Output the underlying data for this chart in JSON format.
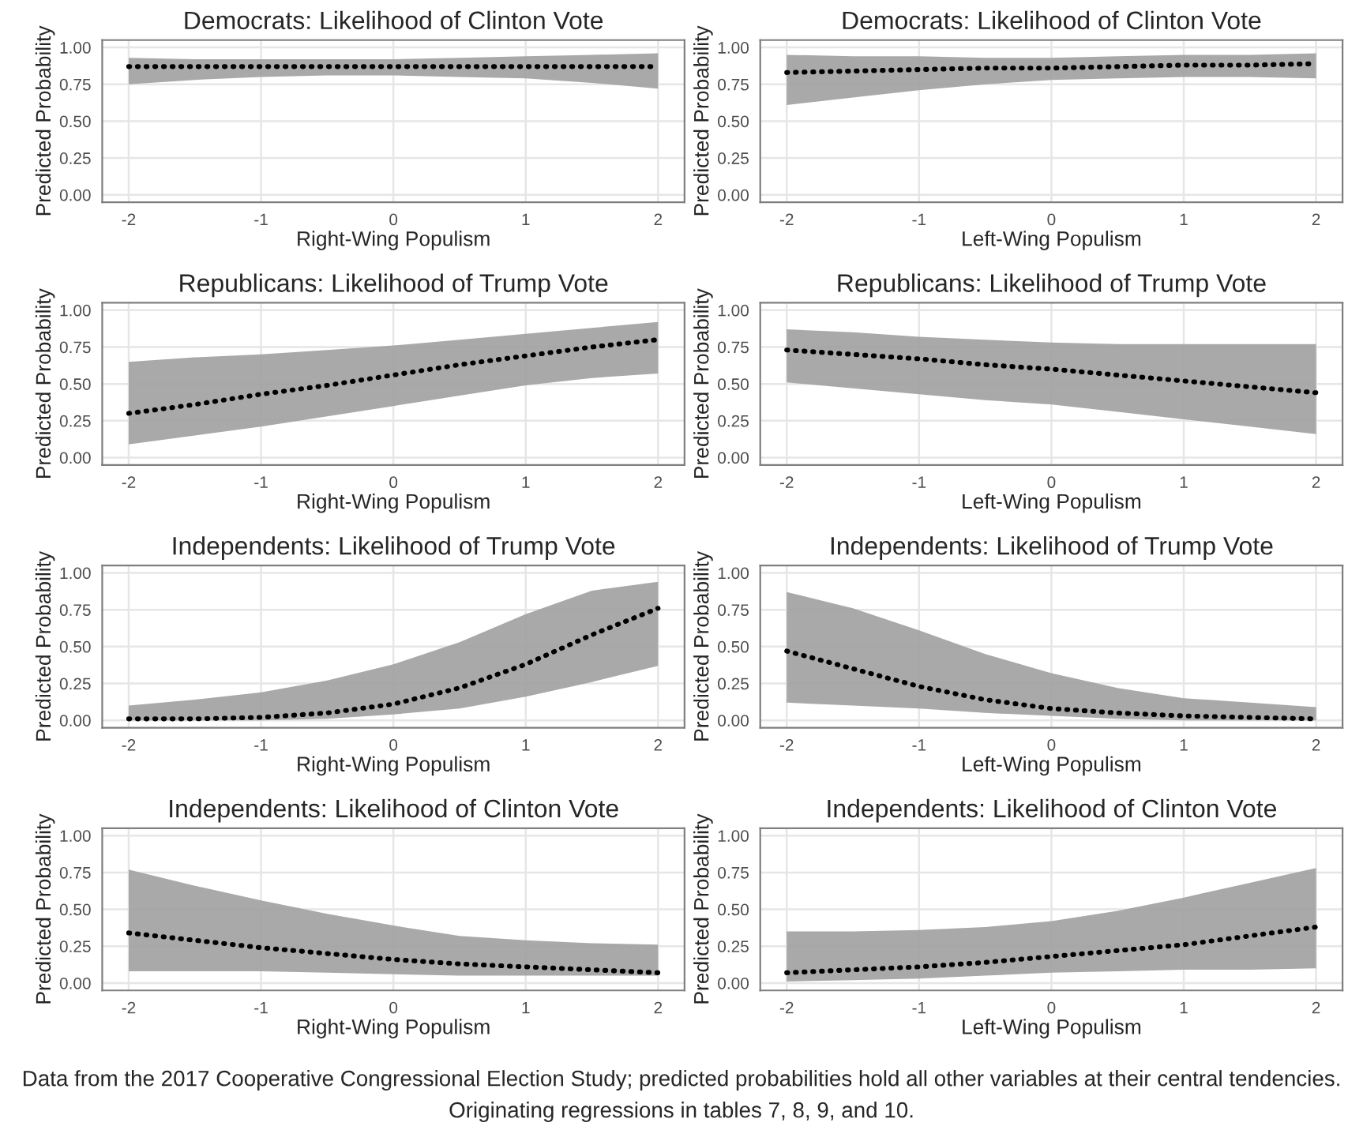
{
  "chart_data": [
    {
      "type": "line",
      "title": "Democrats: Likelihood of Clinton Vote",
      "xlabel": "Right-Wing Populism",
      "ylabel": "Predicted Probability",
      "x": [
        -2,
        -1.5,
        -1,
        -0.5,
        0,
        0.5,
        1,
        1.5,
        2
      ],
      "xlim": [
        -2.2,
        2.2
      ],
      "ylim": [
        -0.05,
        1.05
      ],
      "xticks": [
        -2,
        -1,
        0,
        1,
        2
      ],
      "yticks": [
        {
          "value": 0,
          "label": "0.00"
        },
        {
          "value": 0.25,
          "label": "0.25"
        },
        {
          "value": 0.5,
          "label": "0.50"
        },
        {
          "value": 0.75,
          "label": "0.75"
        },
        {
          "value": 1,
          "label": "1.00"
        }
      ],
      "grid": true,
      "line_style": "dotted",
      "series": [
        {
          "color": "#000000",
          "values": [
            0.87,
            0.87,
            0.87,
            0.87,
            0.87,
            0.87,
            0.87,
            0.87,
            0.87
          ],
          "lower": [
            0.75,
            0.78,
            0.8,
            0.81,
            0.81,
            0.8,
            0.79,
            0.76,
            0.72
          ],
          "upper": [
            0.93,
            0.92,
            0.92,
            0.92,
            0.92,
            0.93,
            0.94,
            0.95,
            0.96
          ]
        }
      ]
    },
    {
      "type": "line",
      "title": "Democrats: Likelihood of Clinton Vote",
      "xlabel": "Left-Wing Populism",
      "ylabel": "Predicted Probability",
      "x": [
        -2,
        -1.5,
        -1,
        -0.5,
        0,
        0.5,
        1,
        1.5,
        2
      ],
      "xlim": [
        -2.2,
        2.2
      ],
      "ylim": [
        -0.05,
        1.05
      ],
      "xticks": [
        -2,
        -1,
        0,
        1,
        2
      ],
      "yticks": [
        {
          "value": 0,
          "label": "0.00"
        },
        {
          "value": 0.25,
          "label": "0.25"
        },
        {
          "value": 0.5,
          "label": "0.50"
        },
        {
          "value": 0.75,
          "label": "0.75"
        },
        {
          "value": 1,
          "label": "1.00"
        }
      ],
      "grid": true,
      "line_style": "dotted",
      "series": [
        {
          "color": "#000000",
          "values": [
            0.83,
            0.84,
            0.85,
            0.86,
            0.86,
            0.87,
            0.88,
            0.88,
            0.89
          ],
          "lower": [
            0.61,
            0.66,
            0.71,
            0.75,
            0.78,
            0.79,
            0.8,
            0.8,
            0.79
          ],
          "upper": [
            0.95,
            0.94,
            0.94,
            0.93,
            0.93,
            0.94,
            0.95,
            0.95,
            0.96
          ]
        }
      ]
    },
    {
      "type": "line",
      "title": "Republicans: Likelihood of Trump Vote",
      "xlabel": "Right-Wing Populism",
      "ylabel": "Predicted Probability",
      "x": [
        -2,
        -1.5,
        -1,
        -0.5,
        0,
        0.5,
        1,
        1.5,
        2
      ],
      "xlim": [
        -2.2,
        2.2
      ],
      "ylim": [
        -0.05,
        1.05
      ],
      "xticks": [
        -2,
        -1,
        0,
        1,
        2
      ],
      "yticks": [
        {
          "value": 0,
          "label": "0.00"
        },
        {
          "value": 0.25,
          "label": "0.25"
        },
        {
          "value": 0.5,
          "label": "0.50"
        },
        {
          "value": 0.75,
          "label": "0.75"
        },
        {
          "value": 1,
          "label": "1.00"
        }
      ],
      "grid": true,
      "line_style": "dotted",
      "series": [
        {
          "color": "#000000",
          "values": [
            0.3,
            0.36,
            0.43,
            0.49,
            0.56,
            0.63,
            0.69,
            0.75,
            0.8
          ],
          "lower": [
            0.09,
            0.15,
            0.21,
            0.28,
            0.35,
            0.42,
            0.49,
            0.54,
            0.57
          ],
          "upper": [
            0.65,
            0.68,
            0.7,
            0.73,
            0.76,
            0.8,
            0.84,
            0.88,
            0.92
          ]
        }
      ]
    },
    {
      "type": "line",
      "title": "Republicans: Likelihood of Trump Vote",
      "xlabel": "Left-Wing Populism",
      "ylabel": "Predicted Probability",
      "x": [
        -2,
        -1.5,
        -1,
        -0.5,
        0,
        0.5,
        1,
        1.5,
        2
      ],
      "xlim": [
        -2.2,
        2.2
      ],
      "ylim": [
        -0.05,
        1.05
      ],
      "xticks": [
        -2,
        -1,
        0,
        1,
        2
      ],
      "yticks": [
        {
          "value": 0,
          "label": "0.00"
        },
        {
          "value": 0.25,
          "label": "0.25"
        },
        {
          "value": 0.5,
          "label": "0.50"
        },
        {
          "value": 0.75,
          "label": "0.75"
        },
        {
          "value": 1,
          "label": "1.00"
        }
      ],
      "grid": true,
      "line_style": "dotted",
      "series": [
        {
          "color": "#000000",
          "values": [
            0.73,
            0.7,
            0.67,
            0.63,
            0.6,
            0.56,
            0.52,
            0.48,
            0.44
          ],
          "lower": [
            0.51,
            0.47,
            0.43,
            0.39,
            0.36,
            0.31,
            0.26,
            0.21,
            0.16
          ],
          "upper": [
            0.87,
            0.85,
            0.82,
            0.8,
            0.78,
            0.77,
            0.77,
            0.77,
            0.77
          ]
        }
      ]
    },
    {
      "type": "line",
      "title": "Independents: Likelihood of Trump Vote",
      "xlabel": "Right-Wing Populism",
      "ylabel": "Predicted Probability",
      "x": [
        -2,
        -1.5,
        -1,
        -0.5,
        0,
        0.5,
        1,
        1.5,
        2
      ],
      "xlim": [
        -2.2,
        2.2
      ],
      "ylim": [
        -0.05,
        1.05
      ],
      "xticks": [
        -2,
        -1,
        0,
        1,
        2
      ],
      "yticks": [
        {
          "value": 0,
          "label": "0.00"
        },
        {
          "value": 0.25,
          "label": "0.25"
        },
        {
          "value": 0.5,
          "label": "0.50"
        },
        {
          "value": 0.75,
          "label": "0.75"
        },
        {
          "value": 1,
          "label": "1.00"
        }
      ],
      "grid": true,
      "line_style": "dotted",
      "series": [
        {
          "color": "#000000",
          "values": [
            0.01,
            0.01,
            0.02,
            0.05,
            0.11,
            0.22,
            0.38,
            0.58,
            0.76
          ],
          "lower": [
            0.0,
            0.0,
            0.0,
            0.01,
            0.04,
            0.08,
            0.16,
            0.26,
            0.37
          ],
          "upper": [
            0.1,
            0.14,
            0.19,
            0.27,
            0.38,
            0.53,
            0.72,
            0.88,
            0.94
          ]
        }
      ]
    },
    {
      "type": "line",
      "title": "Independents: Likelihood of Trump Vote",
      "xlabel": "Left-Wing Populism",
      "ylabel": "Predicted Probability",
      "x": [
        -2,
        -1.5,
        -1,
        -0.5,
        0,
        0.5,
        1,
        1.5,
        2
      ],
      "xlim": [
        -2.2,
        2.2
      ],
      "ylim": [
        -0.05,
        1.05
      ],
      "xticks": [
        -2,
        -1,
        0,
        1,
        2
      ],
      "yticks": [
        {
          "value": 0,
          "label": "0.00"
        },
        {
          "value": 0.25,
          "label": "0.25"
        },
        {
          "value": 0.5,
          "label": "0.50"
        },
        {
          "value": 0.75,
          "label": "0.75"
        },
        {
          "value": 1,
          "label": "1.00"
        }
      ],
      "grid": true,
      "line_style": "dotted",
      "series": [
        {
          "color": "#000000",
          "values": [
            0.47,
            0.35,
            0.23,
            0.14,
            0.08,
            0.05,
            0.03,
            0.02,
            0.01
          ],
          "lower": [
            0.12,
            0.1,
            0.08,
            0.05,
            0.03,
            0.01,
            0.0,
            0.0,
            0.0
          ],
          "upper": [
            0.87,
            0.76,
            0.61,
            0.45,
            0.32,
            0.22,
            0.15,
            0.12,
            0.09
          ]
        }
      ]
    },
    {
      "type": "line",
      "title": "Independents: Likelihood of Clinton Vote",
      "xlabel": "Right-Wing Populism",
      "ylabel": "Predicted Probability",
      "x": [
        -2,
        -1.5,
        -1,
        -0.5,
        0,
        0.5,
        1,
        1.5,
        2
      ],
      "xlim": [
        -2.2,
        2.2
      ],
      "ylim": [
        -0.05,
        1.05
      ],
      "xticks": [
        -2,
        -1,
        0,
        1,
        2
      ],
      "yticks": [
        {
          "value": 0,
          "label": "0.00"
        },
        {
          "value": 0.25,
          "label": "0.25"
        },
        {
          "value": 0.5,
          "label": "0.50"
        },
        {
          "value": 0.75,
          "label": "0.75"
        },
        {
          "value": 1,
          "label": "1.00"
        }
      ],
      "grid": true,
      "line_style": "dotted",
      "series": [
        {
          "color": "#000000",
          "values": [
            0.34,
            0.29,
            0.24,
            0.2,
            0.16,
            0.13,
            0.11,
            0.09,
            0.07
          ],
          "lower": [
            0.08,
            0.08,
            0.08,
            0.07,
            0.06,
            0.05,
            0.05,
            0.05,
            0.05
          ],
          "upper": [
            0.77,
            0.66,
            0.56,
            0.47,
            0.39,
            0.32,
            0.29,
            0.27,
            0.26
          ]
        }
      ]
    },
    {
      "type": "line",
      "title": "Independents: Likelihood of Clinton Vote",
      "xlabel": "Left-Wing Populism",
      "ylabel": "Predicted Probability",
      "x": [
        -2,
        -1.5,
        -1,
        -0.5,
        0,
        0.5,
        1,
        1.5,
        2
      ],
      "xlim": [
        -2.2,
        2.2
      ],
      "ylim": [
        -0.05,
        1.05
      ],
      "xticks": [
        -2,
        -1,
        0,
        1,
        2
      ],
      "yticks": [
        {
          "value": 0,
          "label": "0.00"
        },
        {
          "value": 0.25,
          "label": "0.25"
        },
        {
          "value": 0.5,
          "label": "0.50"
        },
        {
          "value": 0.75,
          "label": "0.75"
        },
        {
          "value": 1,
          "label": "1.00"
        }
      ],
      "grid": true,
      "line_style": "dotted",
      "series": [
        {
          "color": "#000000",
          "values": [
            0.07,
            0.09,
            0.11,
            0.14,
            0.18,
            0.22,
            0.26,
            0.32,
            0.38
          ],
          "lower": [
            0.01,
            0.02,
            0.03,
            0.05,
            0.07,
            0.08,
            0.09,
            0.09,
            0.1
          ],
          "upper": [
            0.35,
            0.35,
            0.36,
            0.38,
            0.42,
            0.49,
            0.58,
            0.68,
            0.78
          ]
        }
      ],
      "annotations": [
        "Data from the 2017 Cooperative Congressional Election Study; predicted probabilities hold all other variables at their central tendencies. Originating regressions in tables 7, 8, 9, and 10."
      ]
    }
  ]
}
